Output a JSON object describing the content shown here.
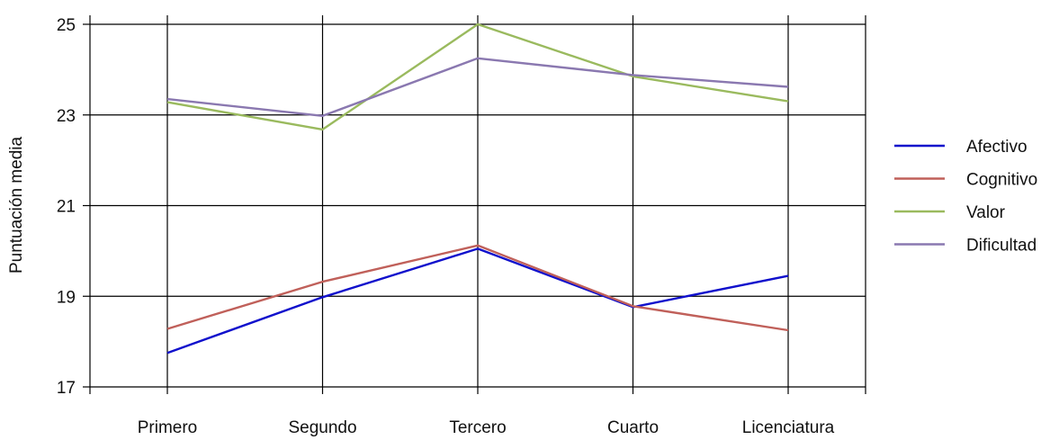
{
  "chart_data": {
    "type": "line",
    "ylabel": "Puntuación media",
    "xlabel": "",
    "categories": [
      "Primero",
      "Segundo",
      "Tercero",
      "Cuarto",
      "Licenciatura"
    ],
    "ylim": [
      17,
      25
    ],
    "yticks": [
      17,
      19,
      21,
      23,
      25
    ],
    "grid": true,
    "legend_position": "right",
    "series": [
      {
        "name": "Afectivo",
        "color": "#1010cc",
        "values": [
          17.75,
          18.98,
          20.05,
          18.76,
          19.45
        ]
      },
      {
        "name": "Cognitivo",
        "color": "#c0605a",
        "values": [
          18.28,
          19.32,
          20.12,
          18.78,
          18.25
        ]
      },
      {
        "name": "Valor",
        "color": "#9aba5e",
        "values": [
          23.28,
          22.68,
          25.0,
          23.85,
          23.3
        ]
      },
      {
        "name": "Dificultad",
        "color": "#8a78b0",
        "values": [
          23.35,
          22.98,
          24.25,
          23.88,
          23.62
        ]
      }
    ]
  }
}
